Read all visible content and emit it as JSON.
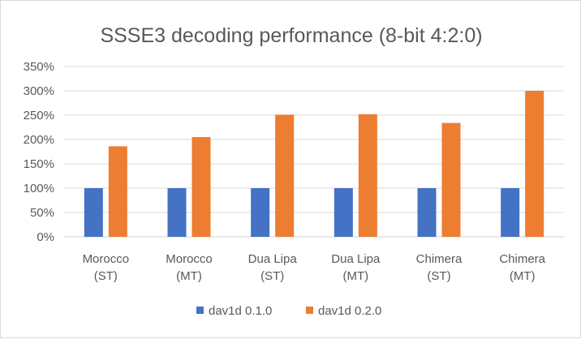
{
  "chart_data": {
    "type": "bar",
    "title": "SSSE3 decoding performance (8-bit 4:2:0)",
    "xlabel": "",
    "ylabel": "",
    "categories": [
      [
        "Morocco",
        "(ST)"
      ],
      [
        "Morocco",
        "(MT)"
      ],
      [
        "Dua Lipa",
        "(ST)"
      ],
      [
        "Dua Lipa",
        "(MT)"
      ],
      [
        "Chimera",
        "(ST)"
      ],
      [
        "Chimera",
        "(MT)"
      ]
    ],
    "series": [
      {
        "name": "dav1d 0.1.0",
        "color": "#4472c4",
        "values": [
          100,
          100,
          100,
          100,
          100,
          100
        ]
      },
      {
        "name": "dav1d 0.2.0",
        "color": "#ed7d31",
        "values": [
          186,
          205,
          251,
          252,
          234,
          300
        ]
      }
    ],
    "ylim": [
      0,
      350
    ],
    "yticks": [
      0,
      50,
      100,
      150,
      200,
      250,
      300,
      350
    ],
    "ytick_labels": [
      "0%",
      "50%",
      "100%",
      "150%",
      "200%",
      "250%",
      "300%",
      "350%"
    ],
    "grid": true,
    "legend": "bottom"
  }
}
